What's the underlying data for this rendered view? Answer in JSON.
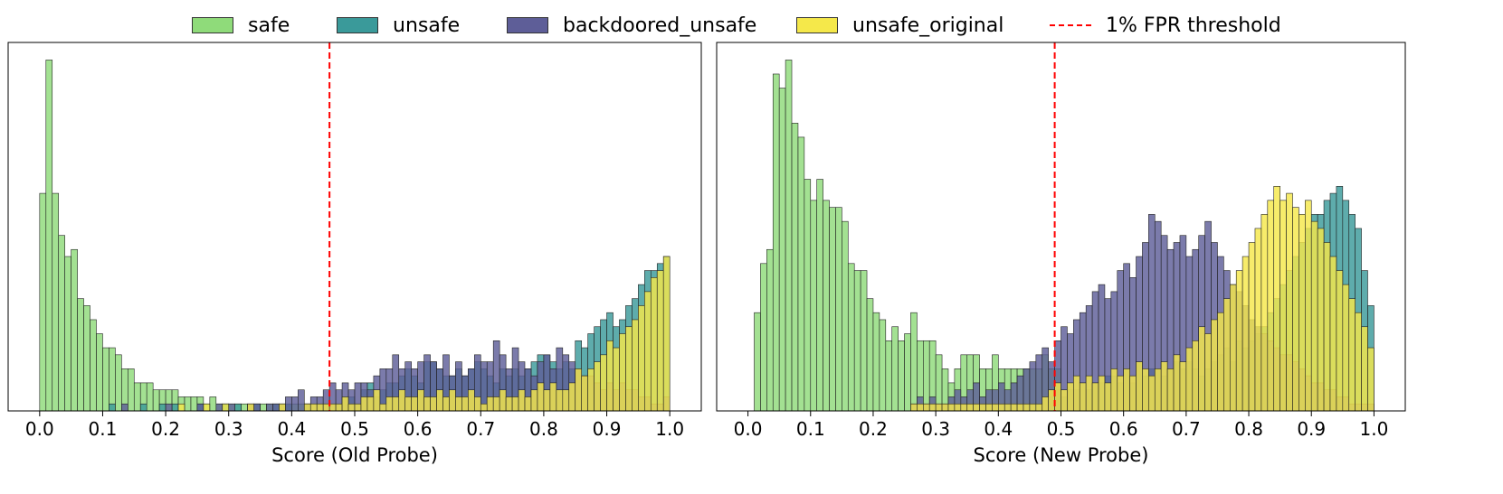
{
  "legend": [
    {
      "label": "safe",
      "color": "#8fdb7a",
      "kind": "patch"
    },
    {
      "label": "unsafe",
      "color": "#3a9a9a",
      "kind": "patch"
    },
    {
      "label": "backdoored_unsafe",
      "color": "#5e5e98",
      "kind": "patch"
    },
    {
      "label": "unsafe_original",
      "color": "#f5e84a",
      "kind": "patch"
    },
    {
      "label": "1% FPR threshold",
      "color": "#ff0000",
      "kind": "dashed-line"
    }
  ],
  "chart_data": [
    {
      "type": "bar",
      "subtype": "overlaid-histogram",
      "xlabel": "Score (Old Probe)",
      "ylabel": "",
      "xlim": [
        -0.05,
        1.05
      ],
      "ylim": [
        0,
        105
      ],
      "xticks": [
        "0.0",
        "0.1",
        "0.2",
        "0.3",
        "0.4",
        "0.5",
        "0.6",
        "0.7",
        "0.8",
        "0.9",
        "1.0"
      ],
      "bin_start": 0.0,
      "bin_width": 0.01,
      "threshold": 0.46,
      "grid": false,
      "series": [
        {
          "name": "safe",
          "color": "#8fdb7a",
          "values": [
            62,
            100,
            62,
            50,
            44,
            46,
            32,
            30,
            26,
            22,
            18,
            18,
            16,
            12,
            12,
            8,
            8,
            8,
            6,
            6,
            6,
            6,
            4,
            4,
            4,
            4,
            2,
            4,
            2,
            2,
            2,
            2,
            2,
            2,
            2,
            2,
            2,
            2,
            2,
            2,
            2,
            2,
            2,
            2,
            2,
            2
          ]
        },
        {
          "name": "unsafe",
          "color": "#3a9a9a",
          "values": [
            0,
            0,
            0,
            0,
            0,
            0,
            0,
            0,
            0,
            0,
            0,
            2,
            0,
            0,
            0,
            0,
            2,
            0,
            0,
            2,
            0,
            2,
            0,
            0,
            0,
            2,
            0,
            0,
            0,
            2,
            0,
            2,
            0,
            0,
            2,
            0,
            0,
            2,
            0,
            2,
            0,
            0,
            2,
            0,
            2,
            0,
            2,
            2,
            4,
            4,
            2,
            6,
            8,
            4,
            6,
            8,
            8,
            10,
            12,
            10,
            8,
            14,
            14,
            12,
            10,
            10,
            12,
            10,
            12,
            14,
            12,
            10,
            8,
            12,
            10,
            12,
            10,
            12,
            14,
            16,
            16,
            14,
            12,
            14,
            12,
            20,
            18,
            22,
            24,
            26,
            28,
            24,
            26,
            30,
            32,
            36,
            40,
            40,
            42,
            44
          ]
        },
        {
          "name": "backdoored_unsafe",
          "color": "#5e5e98",
          "values": [
            0,
            0,
            0,
            0,
            0,
            0,
            0,
            0,
            0,
            0,
            0,
            0,
            0,
            2,
            0,
            0,
            0,
            0,
            0,
            0,
            2,
            0,
            0,
            0,
            0,
            2,
            0,
            0,
            2,
            0,
            2,
            0,
            0,
            2,
            2,
            0,
            2,
            2,
            2,
            4,
            4,
            6,
            2,
            4,
            4,
            6,
            8,
            6,
            8,
            6,
            8,
            8,
            6,
            10,
            12,
            12,
            16,
            12,
            14,
            12,
            14,
            16,
            14,
            12,
            16,
            10,
            14,
            10,
            12,
            16,
            14,
            14,
            20,
            16,
            12,
            18,
            14,
            12,
            10,
            14,
            16,
            12,
            18,
            16,
            14,
            12,
            10,
            10,
            8,
            6,
            8,
            6,
            8,
            6,
            6,
            4,
            4,
            2,
            2,
            4
          ]
        },
        {
          "name": "unsafe_original",
          "color": "#f5e84a",
          "values": [
            0,
            0,
            0,
            0,
            0,
            0,
            0,
            0,
            0,
            0,
            0,
            0,
            0,
            0,
            0,
            0,
            0,
            0,
            0,
            0,
            0,
            0,
            2,
            0,
            0,
            0,
            2,
            0,
            0,
            2,
            0,
            0,
            0,
            2,
            0,
            0,
            0,
            0,
            2,
            0,
            0,
            0,
            2,
            2,
            2,
            2,
            2,
            2,
            4,
            2,
            2,
            4,
            4,
            6,
            2,
            4,
            4,
            6,
            4,
            4,
            6,
            4,
            4,
            6,
            4,
            6,
            4,
            4,
            6,
            4,
            2,
            4,
            4,
            6,
            4,
            4,
            6,
            4,
            6,
            8,
            6,
            8,
            6,
            6,
            8,
            12,
            10,
            12,
            14,
            16,
            20,
            18,
            22,
            24,
            26,
            30,
            34,
            38,
            40,
            44
          ]
        }
      ]
    },
    {
      "type": "bar",
      "subtype": "overlaid-histogram",
      "xlabel": "Score (New Probe)",
      "ylabel": "",
      "xlim": [
        -0.05,
        1.05
      ],
      "ylim": [
        0,
        105
      ],
      "xticks": [
        "0.0",
        "0.1",
        "0.2",
        "0.3",
        "0.4",
        "0.5",
        "0.6",
        "0.7",
        "0.8",
        "0.9",
        "1.0"
      ],
      "bin_start": 0.0,
      "bin_width": 0.01,
      "threshold": 0.49,
      "grid": false,
      "series": [
        {
          "name": "safe",
          "color": "#8fdb7a",
          "values": [
            0,
            28,
            42,
            46,
            96,
            92,
            100,
            82,
            78,
            66,
            60,
            66,
            60,
            58,
            58,
            54,
            42,
            40,
            40,
            32,
            28,
            26,
            20,
            24,
            20,
            22,
            28,
            20,
            20,
            20,
            16,
            12,
            8,
            12,
            16,
            16,
            16,
            12,
            12,
            16,
            12,
            12,
            12,
            12,
            12,
            12,
            12,
            16,
            12,
            12
          ]
        },
        {
          "name": "unsafe",
          "color": "#3a9a9a",
          "values": [
            0,
            0,
            0,
            0,
            0,
            0,
            0,
            0,
            0,
            0,
            0,
            0,
            0,
            0,
            0,
            0,
            0,
            0,
            0,
            0,
            0,
            0,
            0,
            0,
            0,
            0,
            0,
            0,
            0,
            0,
            0,
            0,
            0,
            0,
            0,
            0,
            0,
            0,
            0,
            0,
            0,
            2,
            0,
            0,
            0,
            0,
            0,
            0,
            4,
            6,
            4,
            6,
            6,
            8,
            6,
            8,
            8,
            10,
            10,
            8,
            12,
            8,
            14,
            10,
            12,
            12,
            10,
            12,
            14,
            12,
            14,
            12,
            10,
            12,
            14,
            16,
            18,
            14,
            20,
            18,
            20,
            22,
            24,
            28,
            32,
            36,
            40,
            44,
            48,
            52,
            56,
            56,
            60,
            62,
            64,
            60,
            56,
            52,
            40,
            30
          ]
        },
        {
          "name": "backdoored_unsafe",
          "color": "#5e5e98",
          "values": [
            0,
            0,
            0,
            0,
            0,
            0,
            0,
            0,
            0,
            0,
            0,
            0,
            0,
            0,
            0,
            0,
            0,
            0,
            0,
            0,
            0,
            0,
            0,
            0,
            0,
            0,
            2,
            4,
            2,
            4,
            2,
            2,
            4,
            6,
            4,
            6,
            8,
            4,
            6,
            6,
            8,
            6,
            8,
            10,
            12,
            14,
            16,
            18,
            14,
            20,
            24,
            22,
            26,
            28,
            30,
            34,
            36,
            32,
            34,
            40,
            42,
            38,
            44,
            48,
            56,
            54,
            50,
            46,
            48,
            50,
            44,
            46,
            50,
            54,
            48,
            44,
            40,
            36,
            34,
            30,
            26,
            24,
            22,
            20,
            18,
            16,
            16,
            14,
            12,
            10,
            8,
            8,
            6,
            6,
            4,
            4,
            2,
            2,
            2,
            2
          ]
        },
        {
          "name": "unsafe_original",
          "color": "#f5e84a",
          "values": [
            0,
            0,
            0,
            0,
            0,
            0,
            0,
            0,
            0,
            0,
            0,
            0,
            0,
            0,
            0,
            0,
            0,
            0,
            0,
            0,
            0,
            0,
            0,
            0,
            0,
            0,
            2,
            2,
            2,
            2,
            2,
            2,
            2,
            2,
            2,
            2,
            2,
            2,
            2,
            2,
            2,
            2,
            2,
            2,
            2,
            2,
            2,
            4,
            6,
            8,
            6,
            8,
            10,
            8,
            10,
            8,
            10,
            8,
            12,
            10,
            12,
            10,
            14,
            12,
            10,
            12,
            14,
            12,
            16,
            14,
            18,
            20,
            24,
            22,
            26,
            28,
            32,
            36,
            40,
            44,
            48,
            52,
            56,
            60,
            64,
            60,
            62,
            58,
            56,
            60,
            54,
            52,
            48,
            44,
            40,
            36,
            32,
            28,
            24,
            18
          ]
        }
      ]
    }
  ]
}
